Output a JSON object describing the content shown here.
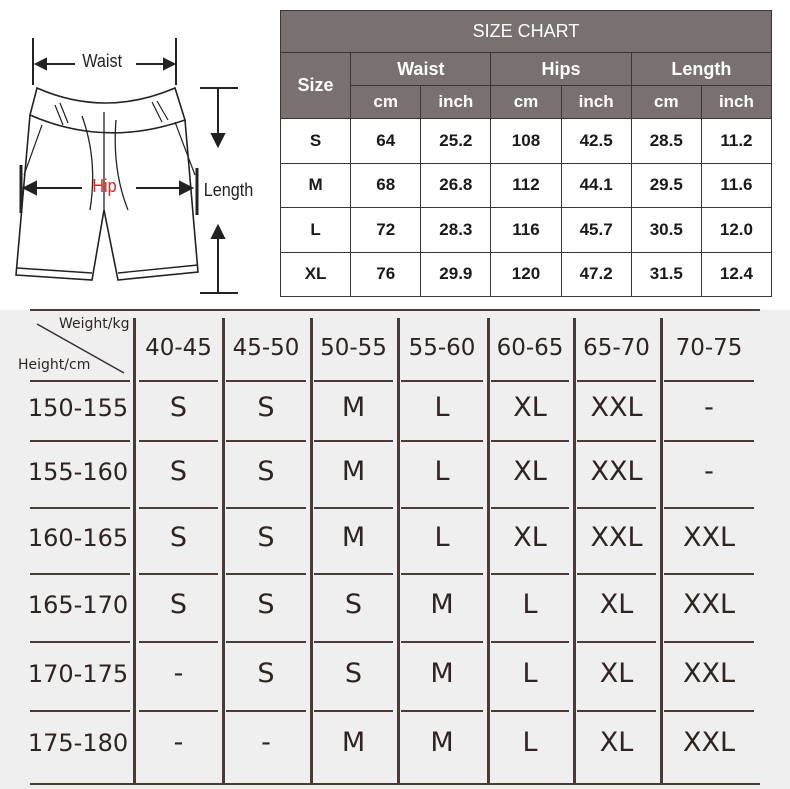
{
  "diagram": {
    "waist_label": "Waist",
    "hip_label": "Hip",
    "length_label": "Length",
    "hip_color": "#e8211d"
  },
  "size_chart": {
    "title": "SIZE CHART",
    "size_header": "Size",
    "groups": [
      "Waist",
      "Hips",
      "Length"
    ],
    "units": [
      "cm",
      "inch",
      "cm",
      "inch",
      "cm",
      "inch"
    ],
    "rows": [
      [
        "S",
        "64",
        "25.2",
        "108",
        "42.5",
        "28.5",
        "11.2"
      ],
      [
        "M",
        "68",
        "26.8",
        "112",
        "44.1",
        "29.5",
        "11.6"
      ],
      [
        "L",
        "72",
        "28.3",
        "116",
        "45.7",
        "30.5",
        "12.0"
      ],
      [
        "XL",
        "76",
        "29.9",
        "120",
        "47.2",
        "31.5",
        "12.4"
      ]
    ],
    "header_color": "#787170"
  },
  "fit_chart": {
    "weight_label": "Weight/kg",
    "height_label": "Height/cm",
    "weights": [
      "40-45",
      "45-50",
      "50-55",
      "55-60",
      "60-65",
      "65-70",
      "70-75"
    ],
    "rows": [
      {
        "height": "150-155",
        "sizes": [
          "S",
          "S",
          "M",
          "L",
          "XL",
          "XXL",
          "-"
        ]
      },
      {
        "height": "155-160",
        "sizes": [
          "S",
          "S",
          "M",
          "L",
          "XL",
          "XXL",
          "-"
        ]
      },
      {
        "height": "160-165",
        "sizes": [
          "S",
          "S",
          "M",
          "L",
          "XL",
          "XXL",
          "XXL"
        ]
      },
      {
        "height": "165-170",
        "sizes": [
          "S",
          "S",
          "S",
          "M",
          "L",
          "XL",
          "XXL"
        ]
      },
      {
        "height": "170-175",
        "sizes": [
          "-",
          "S",
          "S",
          "M",
          "L",
          "XL",
          "XXL"
        ]
      },
      {
        "height": "175-180",
        "sizes": [
          "-",
          "-",
          "M",
          "M",
          "L",
          "XL",
          "XXL"
        ]
      }
    ]
  }
}
